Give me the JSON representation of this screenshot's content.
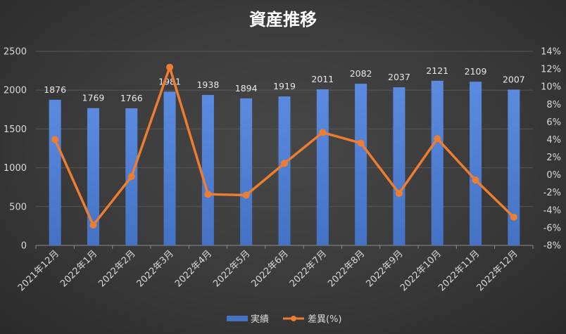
{
  "chart_data": {
    "type": "bar",
    "title": "資産推移",
    "categories": [
      "2021年12月",
      "2022年1月",
      "2022年2月",
      "2022年3月",
      "2022年4月",
      "2022年5月",
      "2022年6月",
      "2022年7月",
      "2022年8月",
      "2022年9月",
      "2022年10月",
      "2022年11月",
      "2022年12月"
    ],
    "series": [
      {
        "name": "実績",
        "type": "bar",
        "axis": "left",
        "color": "#4472c4",
        "values": [
          1876,
          1769,
          1766,
          1981,
          1938,
          1894,
          1919,
          2011,
          2082,
          2037,
          2121,
          2109,
          2007
        ]
      },
      {
        "name": "差異(%)",
        "type": "line",
        "axis": "right",
        "color": "#ed7d31",
        "values": [
          4.0,
          -5.7,
          -0.2,
          12.2,
          -2.2,
          -2.3,
          1.3,
          4.8,
          3.6,
          -2.1,
          4.1,
          -0.6,
          -4.8
        ]
      }
    ],
    "y_left": {
      "min": 0,
      "max": 2500,
      "ticks": [
        "0",
        "500",
        "1000",
        "1500",
        "2000",
        "2500"
      ]
    },
    "y_right": {
      "min": -8,
      "max": 14,
      "ticks": [
        "-8%",
        "-6%",
        "-4%",
        "-2%",
        "0%",
        "2%",
        "4%",
        "6%",
        "8%",
        "10%",
        "12%",
        "14%"
      ]
    },
    "legend_position": "bottom",
    "grid": true,
    "background": "#3a3a3a"
  }
}
